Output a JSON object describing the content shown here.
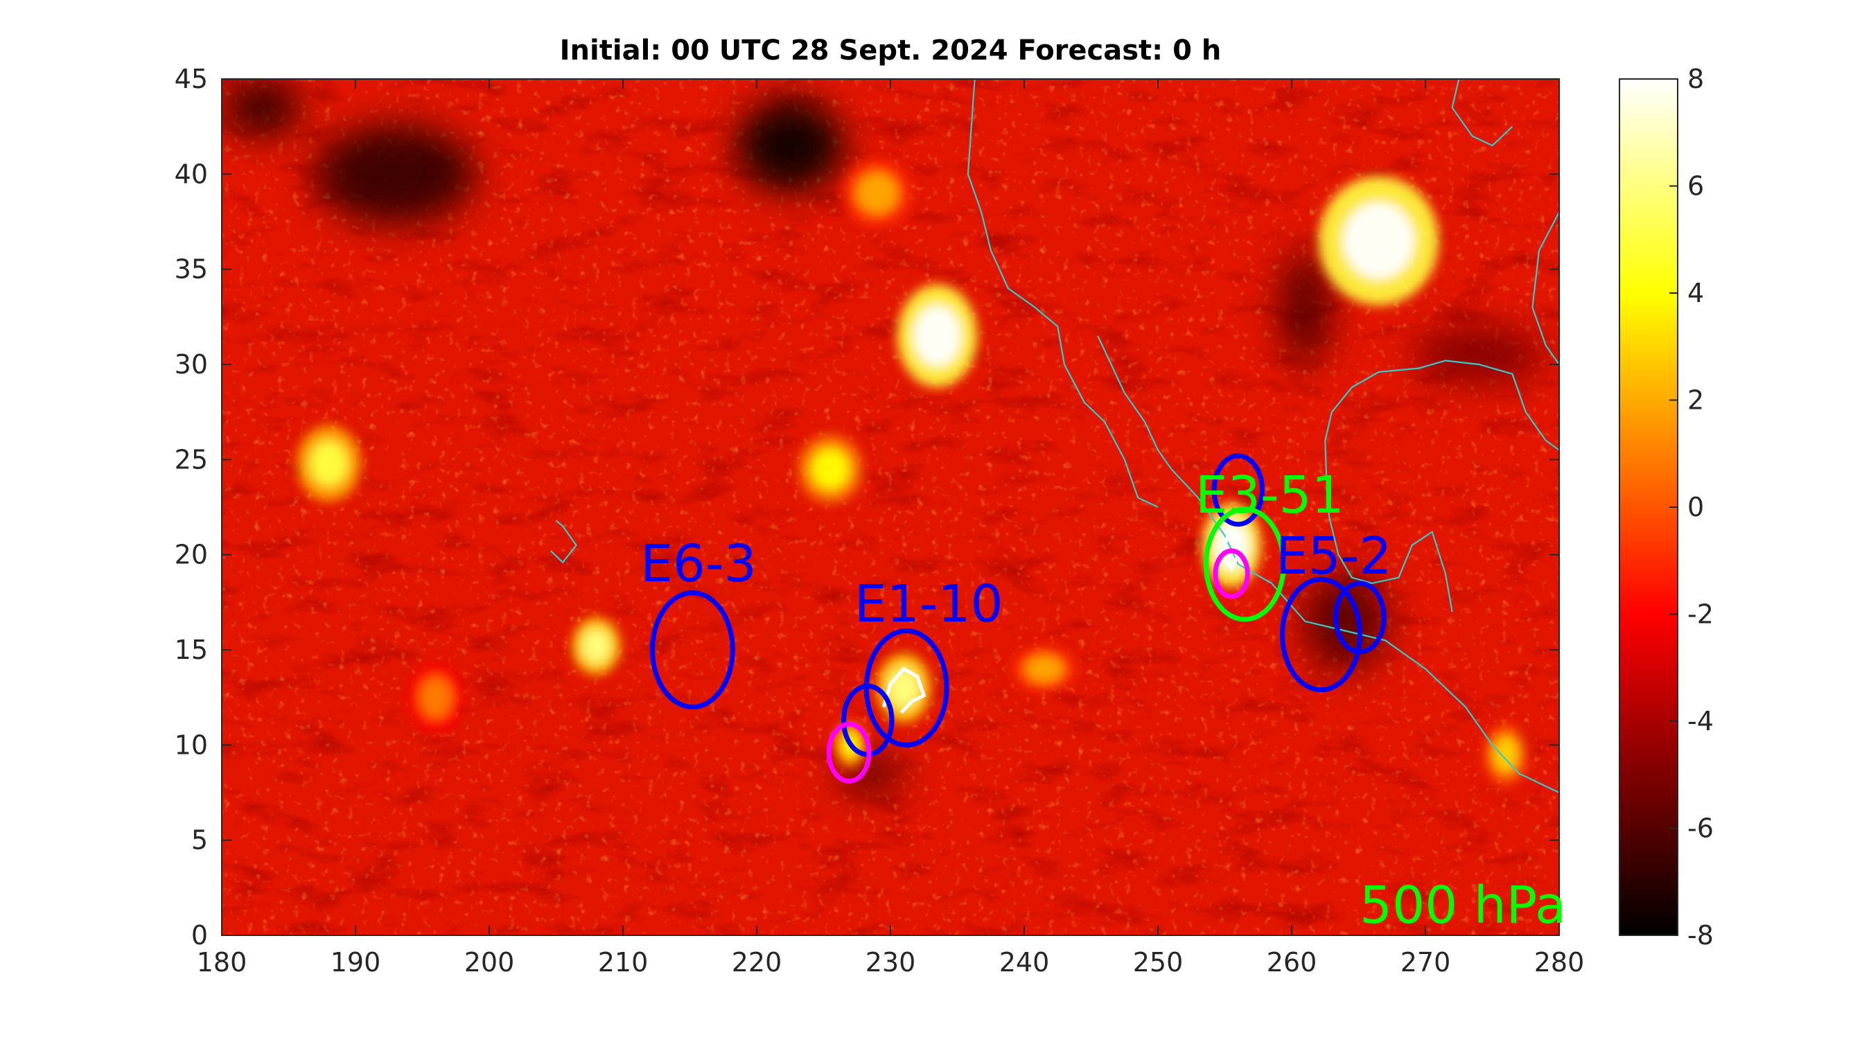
{
  "chart_data": {
    "type": "heatmap",
    "title": "Initial: 00 UTC 28 Sept. 2024 Forecast: 0 h",
    "xlabel": "",
    "ylabel": "",
    "xlim": [
      180,
      280
    ],
    "ylim": [
      0,
      45
    ],
    "x_ticks": [
      "180",
      "190",
      "200",
      "210",
      "220",
      "230",
      "240",
      "250",
      "260",
      "270",
      "280"
    ],
    "y_ticks": [
      "0",
      "5",
      "10",
      "15",
      "20",
      "25",
      "30",
      "35",
      "40",
      "45"
    ],
    "colorbar": {
      "range": [
        -8,
        8
      ],
      "ticks": [
        "-8",
        "-6",
        "-4",
        "-2",
        "0",
        "2",
        "4",
        "6",
        "8"
      ],
      "colormap": "hot"
    },
    "level_label": "500 hPa",
    "level_label_color": "#00ff00",
    "field_hotspots": [
      {
        "lon": 233.5,
        "lat": 31.5,
        "rx": 3.0,
        "ry": 2.7,
        "value": 8
      },
      {
        "lon": 266.5,
        "lat": 36.5,
        "rx": 4.5,
        "ry": 3.4,
        "value": 8
      },
      {
        "lon": 188.0,
        "lat": 24.8,
        "rx": 2.4,
        "ry": 2.0,
        "value": 5
      },
      {
        "lon": 208.0,
        "lat": 15.2,
        "rx": 1.8,
        "ry": 1.5,
        "value": 6
      },
      {
        "lon": 225.5,
        "lat": 24.5,
        "rx": 2.4,
        "ry": 1.8,
        "value": 4
      },
      {
        "lon": 255.5,
        "lat": 20.5,
        "rx": 2.2,
        "ry": 2.2,
        "value": 8
      },
      {
        "lon": 231.0,
        "lat": 13.0,
        "rx": 2.0,
        "ry": 1.8,
        "value": 6
      },
      {
        "lon": 227.0,
        "lat": 10.0,
        "rx": 1.2,
        "ry": 1.2,
        "value": 4
      },
      {
        "lon": 276.0,
        "lat": 9.5,
        "rx": 1.6,
        "ry": 1.6,
        "value": 3
      },
      {
        "lon": 229.0,
        "lat": 39.0,
        "rx": 2.6,
        "ry": 1.8,
        "value": 2
      },
      {
        "lon": 241.5,
        "lat": 14.0,
        "rx": 2.4,
        "ry": 1.2,
        "value": 2
      },
      {
        "lon": 196.0,
        "lat": 12.5,
        "rx": 2.0,
        "ry": 1.8,
        "value": 1
      }
    ],
    "field_coldspots": [
      {
        "lon": 222.5,
        "lat": 41.5,
        "rx": 4.0,
        "ry": 2.4,
        "value": -8
      },
      {
        "lon": 193.0,
        "lat": 40.0,
        "rx": 6.0,
        "ry": 2.6,
        "value": -7
      },
      {
        "lon": 183.0,
        "lat": 43.5,
        "rx": 3.0,
        "ry": 1.5,
        "value": -7
      },
      {
        "lon": 264.0,
        "lat": 16.5,
        "rx": 3.2,
        "ry": 2.6,
        "value": -6
      },
      {
        "lon": 261.0,
        "lat": 33.0,
        "rx": 2.0,
        "ry": 3.0,
        "value": -6
      },
      {
        "lon": 228.5,
        "lat": 8.5,
        "rx": 2.6,
        "ry": 1.0,
        "value": -6
      },
      {
        "lon": 274.0,
        "lat": 30.5,
        "rx": 5.0,
        "ry": 1.5,
        "value": -5
      }
    ],
    "ellipses": [
      {
        "lon": 215.2,
        "lat": 15.0,
        "rx": 3.0,
        "ry": 3.0,
        "color": "#0000ff"
      },
      {
        "lon": 231.2,
        "lat": 13.0,
        "rx": 3.0,
        "ry": 3.0,
        "color": "#0000ff"
      },
      {
        "lon": 228.3,
        "lat": 11.3,
        "rx": 1.8,
        "ry": 1.8,
        "color": "#0000ff"
      },
      {
        "lon": 226.9,
        "lat": 9.6,
        "rx": 1.5,
        "ry": 1.5,
        "color": "#ff00ff"
      },
      {
        "lon": 256.0,
        "lat": 23.4,
        "rx": 1.8,
        "ry": 1.8,
        "color": "#0000ff"
      },
      {
        "lon": 256.5,
        "lat": 19.5,
        "rx": 2.9,
        "ry": 2.9,
        "color": "#00ff00"
      },
      {
        "lon": 255.5,
        "lat": 19.0,
        "rx": 1.2,
        "ry": 1.2,
        "color": "#ff00ff"
      },
      {
        "lon": 262.2,
        "lat": 15.8,
        "rx": 2.9,
        "ry": 2.9,
        "color": "#0000ff"
      },
      {
        "lon": 265.1,
        "lat": 16.7,
        "rx": 1.8,
        "ry": 1.8,
        "color": "#0000ff"
      }
    ],
    "annotations": [
      {
        "text": "E6-3",
        "lon": 211.3,
        "lat": 18.6,
        "color": "#0000ff"
      },
      {
        "text": "E1-10",
        "lon": 227.3,
        "lat": 16.5,
        "color": "#0000ff"
      },
      {
        "text": "E3-51",
        "lon": 252.8,
        "lat": 22.2,
        "color": "#00ff00"
      },
      {
        "text": "E5-2",
        "lon": 258.8,
        "lat": 19.0,
        "color": "#0000ff"
      }
    ],
    "coastline_color": "#33cccc",
    "coastlines": [
      [
        [
          236.3,
          45
        ],
        [
          236.0,
          42
        ],
        [
          235.8,
          40
        ],
        [
          236.8,
          38
        ],
        [
          237.5,
          36
        ],
        [
          238.8,
          34
        ],
        [
          240.8,
          33
        ],
        [
          242.5,
          32
        ],
        [
          243.0,
          30
        ],
        [
          244.5,
          28
        ],
        [
          246.0,
          27
        ],
        [
          247.5,
          25
        ],
        [
          248.5,
          23
        ],
        [
          250.0,
          22.5
        ]
      ],
      [
        [
          245.5,
          31.5
        ],
        [
          246.5,
          30
        ],
        [
          247.5,
          28.5
        ],
        [
          249.0,
          27
        ],
        [
          250.0,
          25.5
        ],
        [
          251.0,
          24.5
        ],
        [
          253.0,
          23
        ],
        [
          255.0,
          21
        ],
        [
          256.0,
          19.5
        ],
        [
          258.5,
          18.5
        ],
        [
          261.0,
          16.5
        ],
        [
          264.0,
          16
        ],
        [
          267.0,
          15.5
        ],
        [
          270.0,
          14
        ],
        [
          273.0,
          12
        ],
        [
          275.0,
          10
        ],
        [
          277.0,
          8.5
        ],
        [
          280.0,
          7.5
        ]
      ],
      [
        [
          262.5,
          26
        ],
        [
          262.6,
          24
        ],
        [
          262.8,
          22
        ],
        [
          263.5,
          20
        ],
        [
          264.5,
          18.8
        ],
        [
          266.0,
          18.5
        ],
        [
          268.0,
          18.8
        ],
        [
          269.0,
          20.5
        ],
        [
          270.5,
          21.2
        ],
        [
          271.5,
          19
        ],
        [
          272.0,
          17
        ]
      ],
      [
        [
          262.5,
          26
        ],
        [
          263.0,
          27.5
        ],
        [
          264.5,
          28.8
        ],
        [
          266.5,
          29.6
        ],
        [
          269.5,
          29.8
        ],
        [
          271.5,
          30.2
        ],
        [
          274.0,
          30.0
        ],
        [
          276.5,
          29.5
        ],
        [
          277.5,
          27.5
        ],
        [
          279.0,
          26.0
        ],
        [
          280.0,
          25.5
        ]
      ],
      [
        [
          280.0,
          38
        ],
        [
          278.5,
          36
        ],
        [
          278.0,
          33
        ],
        [
          279.0,
          31
        ],
        [
          280.0,
          30
        ]
      ],
      [
        [
          272.5,
          45
        ],
        [
          272.0,
          43.5
        ],
        [
          273.5,
          42.0
        ],
        [
          275.0,
          41.5
        ],
        [
          276.5,
          42.5
        ]
      ],
      [
        [
          205.0,
          21.8
        ],
        [
          205.5,
          21.5
        ],
        [
          206.5,
          20.5
        ],
        [
          205.5,
          19.6
        ],
        [
          204.6,
          20.2
        ]
      ]
    ],
    "hot_contours": [
      [
        [
          229.5,
          12.0
        ],
        [
          230.0,
          13.2
        ],
        [
          231.0,
          14.0
        ],
        [
          232.0,
          13.6
        ],
        [
          232.5,
          12.6
        ],
        [
          231.6,
          12.3
        ],
        [
          230.8,
          11.7
        ]
      ],
      [
        [
          255.3,
          21.2
        ],
        [
          254.8,
          20.0
        ],
        [
          255.5,
          19.3
        ],
        [
          256.2,
          20.2
        ],
        [
          255.9,
          21.0
        ]
      ]
    ]
  }
}
